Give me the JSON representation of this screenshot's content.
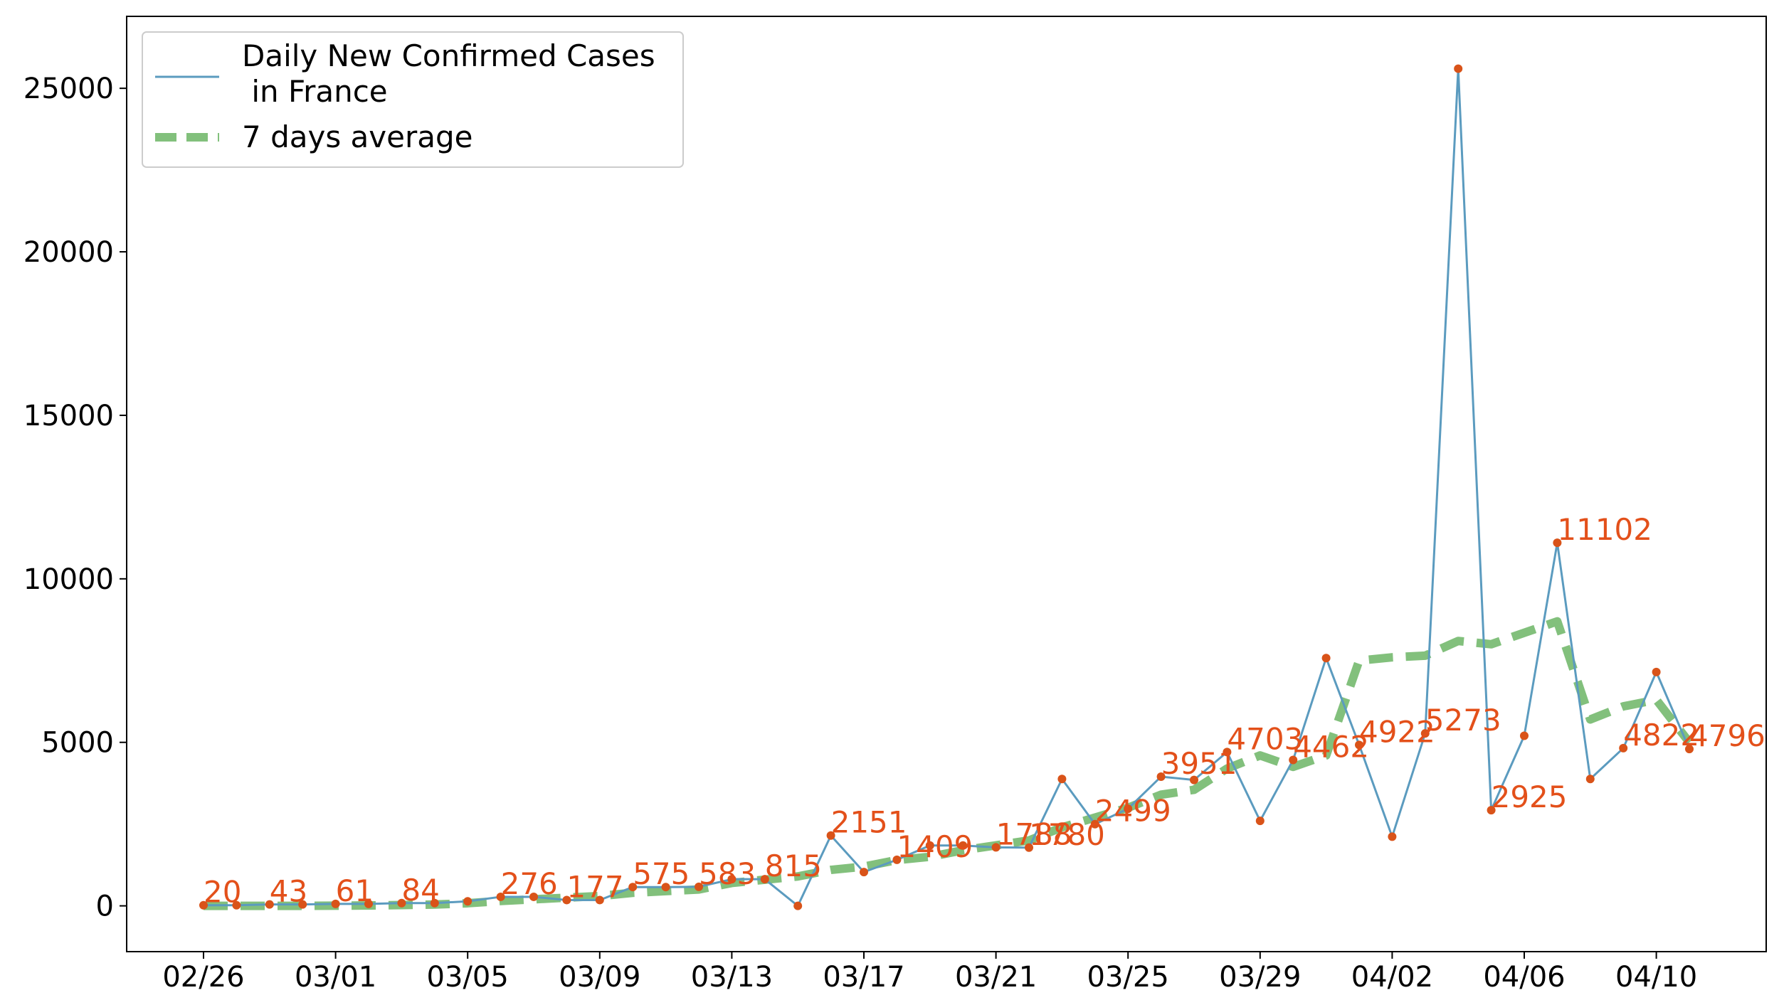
{
  "chart_data": {
    "type": "line",
    "dates": [
      "02/26",
      "02/27",
      "02/28",
      "02/29",
      "03/01",
      "03/02",
      "03/03",
      "03/04",
      "03/05",
      "03/06",
      "03/07",
      "03/08",
      "03/09",
      "03/10",
      "03/11",
      "03/12",
      "03/13",
      "03/14",
      "03/15",
      "03/16",
      "03/17",
      "03/18",
      "03/19",
      "03/20",
      "03/21",
      "03/22",
      "03/23",
      "03/24",
      "03/25",
      "03/26",
      "03/27",
      "03/28",
      "03/29",
      "03/30",
      "03/31",
      "04/01",
      "04/02",
      "04/03",
      "04/04",
      "04/05",
      "04/06",
      "04/07",
      "04/08",
      "04/09",
      "04/10",
      "04/11"
    ],
    "xticks": [
      "02/26",
      "03/01",
      "03/05",
      "03/09",
      "03/13",
      "03/17",
      "03/21",
      "03/25",
      "03/29",
      "04/02",
      "04/06",
      "04/10"
    ],
    "yticks": [
      0,
      5000,
      10000,
      15000,
      20000,
      25000
    ],
    "ylim": [
      -1400,
      27200
    ],
    "series": [
      {
        "name": "Daily New Confirmed Cases\n in France",
        "color": "#5b9bbf",
        "values": [
          20,
          20,
          43,
          43,
          61,
          61,
          84,
          84,
          138,
          276,
          276,
          177,
          177,
          575,
          575,
          583,
          815,
          815,
          0,
          2151,
          1033,
          1409,
          1845,
          1845,
          1788,
          1780,
          3880,
          2499,
          2970,
          3951,
          3850,
          4703,
          2599,
          4462,
          7578,
          4922,
          2116,
          5273,
          25600,
          2925,
          5200,
          11102,
          3880,
          4822,
          7150,
          4796
        ]
      },
      {
        "name": "7 days average",
        "color": "#74b96e",
        "style": "dashed",
        "values": [
          0,
          0,
          0,
          0,
          5,
          12,
          25,
          40,
          80,
          150,
          200,
          250,
          300,
          400,
          450,
          500,
          700,
          800,
          900,
          1100,
          1200,
          1400,
          1500,
          1700,
          1850,
          2000,
          2400,
          2700,
          3000,
          3400,
          3550,
          4200,
          4600,
          4250,
          4600,
          7500,
          7600,
          7650,
          8100,
          8000,
          8350,
          8700,
          5700,
          6100,
          6300,
          5000
        ]
      }
    ],
    "point_color": "#d95319",
    "data_labels": [
      {
        "i": 0,
        "text": "20"
      },
      {
        "i": 2,
        "text": "43"
      },
      {
        "i": 4,
        "text": "61"
      },
      {
        "i": 6,
        "text": "84"
      },
      {
        "i": 9,
        "text": "276"
      },
      {
        "i": 11,
        "text": "177"
      },
      {
        "i": 13,
        "text": "575"
      },
      {
        "i": 15,
        "text": "583"
      },
      {
        "i": 17,
        "text": "815"
      },
      {
        "i": 19,
        "text": "2151"
      },
      {
        "i": 21,
        "text": "1409"
      },
      {
        "i": 24,
        "text": "1788"
      },
      {
        "i": 25,
        "text": "1780"
      },
      {
        "i": 27,
        "text": "2499"
      },
      {
        "i": 29,
        "text": "3951"
      },
      {
        "i": 31,
        "text": "4703"
      },
      {
        "i": 33,
        "text": "4462"
      },
      {
        "i": 35,
        "text": "4922"
      },
      {
        "i": 37,
        "text": "5273"
      },
      {
        "i": 39,
        "text": "2925"
      },
      {
        "i": 41,
        "text": "11102"
      },
      {
        "i": 43,
        "text": "4822"
      },
      {
        "i": 45,
        "text": "4796"
      }
    ],
    "label_color": "#e3501a",
    "legend": {
      "placement": "top-left",
      "entries": [
        "Daily New Confirmed Cases",
        " in France",
        "7 days average"
      ]
    },
    "grid": false
  }
}
